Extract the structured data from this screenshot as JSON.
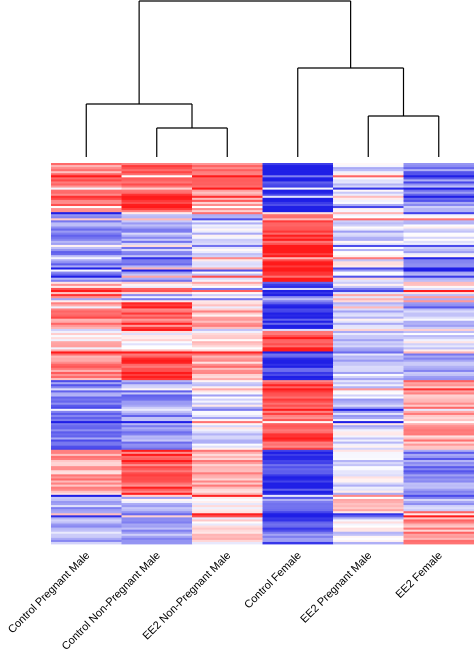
{
  "chart_data": {
    "type": "heatmap",
    "title": "",
    "columns": [
      "Control Pregnant Male",
      "Control Non-Pregnant Male",
      "EE2 Non-Pregnant Male",
      "Control Female",
      "EE2 Pregnant Male",
      "EE2 Female"
    ],
    "color_scale": {
      "low": "#1f1fe6",
      "mid": "#ffffff",
      "high": "#ff1a1a"
    },
    "dendrogram": {
      "clusters": [
        {
          "name": "left",
          "members": [
            "Control Pregnant Male",
            [
              "Control Non-Pregnant Male",
              "EE2 Non-Pregnant Male"
            ]
          ]
        },
        {
          "name": "right",
          "members": [
            "Control Female",
            [
              "EE2 Pregnant Male",
              "EE2 Female"
            ]
          ]
        }
      ]
    },
    "row_blocks": [
      {
        "rows": 24,
        "values": [
          0.55,
          0.8,
          0.45,
          -0.9,
          -0.15,
          -0.55
        ]
      },
      {
        "rows": 22,
        "values": [
          -0.55,
          -0.4,
          -0.15,
          0.85,
          -0.2,
          -0.2
        ]
      },
      {
        "rows": 12,
        "values": [
          -0.5,
          -0.45,
          -0.1,
          0.95,
          -0.1,
          -0.45
        ]
      },
      {
        "rows": 10,
        "values": [
          0.3,
          0.15,
          0.2,
          -0.75,
          -0.1,
          0.2
        ]
      },
      {
        "rows": 14,
        "values": [
          0.55,
          0.7,
          0.3,
          -0.9,
          -0.2,
          -0.3
        ]
      },
      {
        "rows": 10,
        "values": [
          0.2,
          0.1,
          0.1,
          0.8,
          -0.25,
          -0.1
        ]
      },
      {
        "rows": 14,
        "values": [
          0.5,
          0.85,
          0.4,
          -0.9,
          -0.25,
          -0.5
        ]
      },
      {
        "rows": 18,
        "values": [
          -0.55,
          -0.45,
          -0.15,
          0.75,
          -0.2,
          0.45
        ]
      },
      {
        "rows": 16,
        "values": [
          -0.55,
          -0.4,
          -0.15,
          0.75,
          -0.15,
          0.4
        ]
      },
      {
        "rows": 22,
        "values": [
          0.4,
          0.75,
          0.35,
          -0.9,
          -0.1,
          -0.5
        ]
      },
      {
        "rows": 8,
        "values": [
          -0.35,
          -0.2,
          0.1,
          -0.6,
          0.15,
          -0.4
        ]
      },
      {
        "rows": 16,
        "values": [
          -0.35,
          -0.3,
          0.15,
          -0.65,
          -0.1,
          0.45
        ]
      }
    ]
  }
}
